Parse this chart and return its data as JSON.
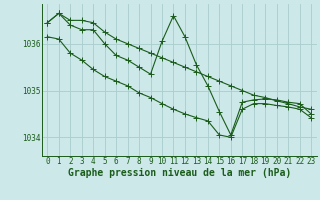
{
  "background_color": "#cce8e8",
  "grid_color": "#aacccc",
  "line_color": "#1a5c1a",
  "marker": "+",
  "markersize": 4,
  "linewidth": 0.8,
  "xlabel": "Graphe pression niveau de la mer (hPa)",
  "xlabel_fontsize": 7,
  "tick_fontsize": 5.5,
  "ylim": [
    1033.6,
    1036.85
  ],
  "xlim": [
    -0.5,
    23.5
  ],
  "yticks": [
    1034,
    1035,
    1036
  ],
  "xticks": [
    0,
    1,
    2,
    3,
    4,
    5,
    6,
    7,
    8,
    9,
    10,
    11,
    12,
    13,
    14,
    15,
    16,
    17,
    18,
    19,
    20,
    21,
    22,
    23
  ],
  "series": [
    [
      1036.45,
      1036.65,
      1036.5,
      1036.5,
      1036.45,
      1036.25,
      1036.1,
      1036.0,
      1035.9,
      1035.8,
      1035.7,
      1035.6,
      1035.5,
      1035.4,
      1035.3,
      1035.2,
      1035.1,
      1035.0,
      1034.9,
      1034.85,
      1034.78,
      1034.72,
      1034.65,
      1034.6
    ],
    [
      1036.45,
      1036.65,
      1036.4,
      1036.3,
      1036.3,
      1036.0,
      1035.75,
      1035.65,
      1035.5,
      1035.35,
      1036.05,
      1036.6,
      1036.15,
      1035.55,
      1035.1,
      1034.55,
      1034.05,
      1034.75,
      1034.8,
      1034.82,
      1034.8,
      1034.75,
      1034.72,
      1034.5
    ],
    [
      1036.15,
      1036.1,
      1035.8,
      1035.65,
      1035.45,
      1035.3,
      1035.2,
      1035.1,
      1034.95,
      1034.85,
      1034.72,
      1034.6,
      1034.5,
      1034.42,
      1034.35,
      1034.05,
      1034.0,
      1034.6,
      1034.72,
      1034.72,
      1034.68,
      1034.65,
      1034.6,
      1034.42
    ]
  ]
}
